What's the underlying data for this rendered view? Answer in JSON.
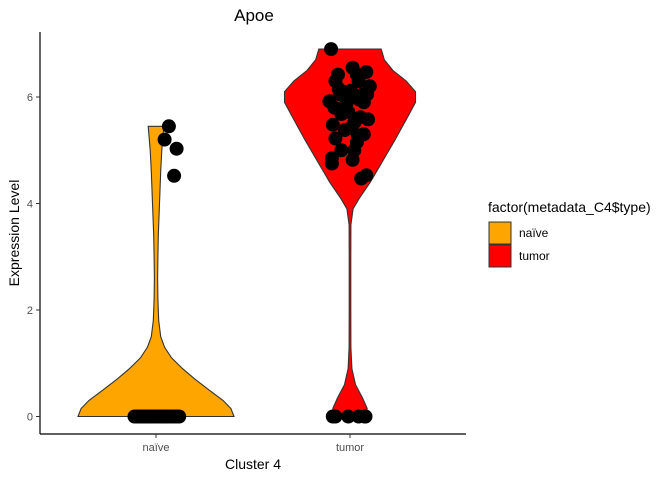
{
  "chart_data": {
    "type": "violin",
    "title": "Apoe",
    "xlabel": "Cluster 4",
    "ylabel": "Expression Level",
    "ylim": [
      -0.35,
      7.25
    ],
    "yticks": [
      0,
      2,
      4,
      6
    ],
    "grid": false,
    "categories": [
      "naïve",
      "tumor"
    ],
    "legend": {
      "title": "factor(metadata_C4$type)",
      "placement": "right",
      "entries": [
        {
          "label": "naïve",
          "color": "#FFA500"
        },
        {
          "label": "tumor",
          "color": "#FF0000"
        }
      ]
    },
    "series": [
      {
        "category": "naïve",
        "color": "#FFA500",
        "violin_range": [
          0,
          5.45
        ],
        "density_profile": [
          [
            0,
            1.0
          ],
          [
            0.15,
            0.96
          ],
          [
            0.3,
            0.86
          ],
          [
            0.5,
            0.68
          ],
          [
            0.7,
            0.5
          ],
          [
            0.9,
            0.34
          ],
          [
            1.1,
            0.2
          ],
          [
            1.3,
            0.11
          ],
          [
            1.5,
            0.06
          ],
          [
            1.8,
            0.035
          ],
          [
            2.2,
            0.025
          ],
          [
            2.6,
            0.02
          ],
          [
            3.0,
            0.025
          ],
          [
            3.4,
            0.03
          ],
          [
            3.8,
            0.04
          ],
          [
            4.2,
            0.05
          ],
          [
            4.6,
            0.06
          ],
          [
            5.0,
            0.075
          ],
          [
            5.45,
            0.1
          ]
        ],
        "points": [
          [
            -0.25,
            0
          ],
          [
            -0.22,
            0
          ],
          [
            -0.2,
            0
          ],
          [
            -0.18,
            0
          ],
          [
            -0.15,
            0
          ],
          [
            -0.12,
            0
          ],
          [
            -0.1,
            0
          ],
          [
            -0.08,
            0
          ],
          [
            -0.05,
            0
          ],
          [
            -0.03,
            0
          ],
          [
            0.0,
            0
          ],
          [
            0.02,
            0
          ],
          [
            0.05,
            0
          ],
          [
            0.07,
            0
          ],
          [
            0.1,
            0
          ],
          [
            0.12,
            0
          ],
          [
            0.15,
            0
          ],
          [
            0.18,
            0
          ],
          [
            0.21,
            0
          ],
          [
            0.24,
            0
          ],
          [
            0.27,
            0
          ],
          [
            0.1,
            5.2
          ],
          [
            0.15,
            5.45
          ],
          [
            0.24,
            5.03
          ],
          [
            0.21,
            4.52
          ]
        ]
      },
      {
        "category": "tumor",
        "color": "#FF0000",
        "violin_range": [
          0,
          6.9
        ],
        "density_profile": [
          [
            0,
            0.2
          ],
          [
            0.15,
            0.22
          ],
          [
            0.35,
            0.16
          ],
          [
            0.6,
            0.07
          ],
          [
            0.9,
            0.025
          ],
          [
            1.3,
            0.012
          ],
          [
            2.0,
            0.01
          ],
          [
            3.0,
            0.01
          ],
          [
            3.6,
            0.012
          ],
          [
            3.9,
            0.04
          ],
          [
            4.1,
            0.12
          ],
          [
            4.4,
            0.26
          ],
          [
            4.8,
            0.42
          ],
          [
            5.2,
            0.58
          ],
          [
            5.6,
            0.73
          ],
          [
            5.9,
            0.84
          ],
          [
            6.1,
            0.84
          ],
          [
            6.3,
            0.72
          ],
          [
            6.5,
            0.55
          ],
          [
            6.7,
            0.44
          ],
          [
            6.9,
            0.4
          ]
        ],
        "points": [
          [
            -0.2,
            0
          ],
          [
            -0.17,
            0
          ],
          [
            -0.02,
            0
          ],
          [
            0.1,
            0
          ],
          [
            0.17,
            0
          ],
          [
            0.18,
            0
          ],
          [
            -0.22,
            6.9
          ],
          [
            -0.17,
            6.3
          ],
          [
            -0.14,
            6.42
          ],
          [
            -0.07,
            6.1
          ],
          [
            0.03,
            6.55
          ],
          [
            0.08,
            6.42
          ],
          [
            0.19,
            6.47
          ],
          [
            0.23,
            6.2
          ],
          [
            0.15,
            6.05
          ],
          [
            -0.24,
            5.92
          ],
          [
            -0.12,
            6.05
          ],
          [
            -0.18,
            5.8
          ],
          [
            -0.04,
            5.88
          ],
          [
            0.01,
            6.12
          ],
          [
            0.06,
            6.0
          ],
          [
            0.11,
            5.95
          ],
          [
            0.16,
            5.9
          ],
          [
            -0.1,
            5.68
          ],
          [
            -0.02,
            5.72
          ],
          [
            0.05,
            5.52
          ],
          [
            0.12,
            5.62
          ],
          [
            0.21,
            5.58
          ],
          [
            -0.2,
            5.48
          ],
          [
            -0.06,
            5.38
          ],
          [
            0.01,
            5.42
          ],
          [
            0.09,
            5.28
          ],
          [
            0.16,
            5.3
          ],
          [
            -0.17,
            5.22
          ],
          [
            -0.1,
            5.0
          ],
          [
            0.05,
            5.0
          ],
          [
            0.08,
            5.15
          ],
          [
            0.03,
            4.82
          ],
          [
            -0.21,
            4.85
          ],
          [
            -0.21,
            4.75
          ],
          [
            0.13,
            4.47
          ],
          [
            0.19,
            4.53
          ],
          [
            -0.13,
            6.15
          ],
          [
            0.1,
            6.3
          ],
          [
            0.2,
            6.05
          ]
        ]
      }
    ]
  }
}
